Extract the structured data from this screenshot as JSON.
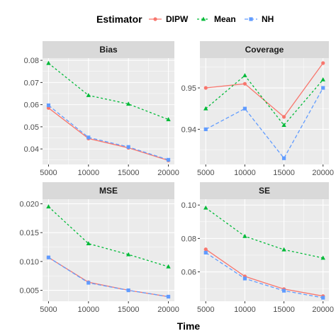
{
  "colors": {
    "DIPW": "#F8766D",
    "Mean": "#00BA38",
    "NH": "#619CFF",
    "panel_bg": "#EBEBEB",
    "strip_bg": "#D9D9D9",
    "grid": "#FFFFFF"
  },
  "legend": {
    "title": "Estimator",
    "items": [
      {
        "label": "DIPW",
        "marker": "circle",
        "dash": "solid"
      },
      {
        "label": "Mean",
        "marker": "triangle",
        "dash": "dotted"
      },
      {
        "label": "NH",
        "marker": "square",
        "dash": "dashed"
      }
    ]
  },
  "xlabel": "Time",
  "chart_data": [
    {
      "type": "line",
      "title": "Bias",
      "x": [
        5000,
        10000,
        15000,
        20000
      ],
      "xticks": [
        "5000",
        "10000",
        "15000",
        "20000"
      ],
      "ylim": [
        0.033,
        0.081
      ],
      "yticks": [
        0.04,
        0.05,
        0.06,
        0.07,
        0.08
      ],
      "ytick_labels": [
        "0.04",
        "0.05",
        "0.06",
        "0.07",
        "0.08"
      ],
      "series": [
        {
          "name": "DIPW",
          "values": [
            0.0585,
            0.0447,
            0.0405,
            0.0348
          ]
        },
        {
          "name": "Mean",
          "values": [
            0.0787,
            0.0642,
            0.0603,
            0.0533
          ]
        },
        {
          "name": "NH",
          "values": [
            0.0597,
            0.0452,
            0.0409,
            0.0351
          ]
        }
      ]
    },
    {
      "type": "line",
      "title": "Coverage",
      "x": [
        5000,
        10000,
        15000,
        20000
      ],
      "xticks": [
        "5000",
        "10000",
        "15000",
        "20000"
      ],
      "ylim": [
        0.9315,
        0.9572
      ],
      "yticks": [
        0.94,
        0.95
      ],
      "ytick_labels": [
        "0.94",
        "0.95"
      ],
      "series": [
        {
          "name": "DIPW",
          "values": [
            0.95,
            0.951,
            0.943,
            0.956
          ]
        },
        {
          "name": "Mean",
          "values": [
            0.945,
            0.953,
            0.941,
            0.952
          ]
        },
        {
          "name": "NH",
          "values": [
            0.94,
            0.945,
            0.933,
            0.95
          ]
        }
      ]
    },
    {
      "type": "line",
      "title": "MSE",
      "x": [
        5000,
        10000,
        15000,
        20000
      ],
      "xticks": [
        "5000",
        "10000",
        "15000",
        "20000"
      ],
      "ylim": [
        0.0031,
        0.0208
      ],
      "yticks": [
        0.005,
        0.01,
        0.015,
        0.02
      ],
      "ytick_labels": [
        "0.005",
        "0.010",
        "0.015",
        "0.020"
      ],
      "series": [
        {
          "name": "DIPW",
          "values": [
            0.0107,
            0.0064,
            0.005,
            0.0039
          ]
        },
        {
          "name": "Mean",
          "values": [
            0.0195,
            0.0131,
            0.0112,
            0.0091
          ]
        },
        {
          "name": "NH",
          "values": [
            0.0107,
            0.0063,
            0.005,
            0.0039
          ]
        }
      ]
    },
    {
      "type": "line",
      "title": "SE",
      "x": [
        5000,
        10000,
        15000,
        20000
      ],
      "xticks": [
        "5000",
        "10000",
        "15000",
        "20000"
      ],
      "ylim": [
        0.0424,
        0.1035
      ],
      "yticks": [
        0.06,
        0.08,
        0.1
      ],
      "ytick_labels": [
        "0.06",
        "0.08",
        "0.10"
      ],
      "series": [
        {
          "name": "DIPW",
          "values": [
            0.0735,
            0.0573,
            0.0497,
            0.0455
          ]
        },
        {
          "name": "Mean",
          "values": [
            0.0983,
            0.0813,
            0.0733,
            0.0683
          ]
        },
        {
          "name": "NH",
          "values": [
            0.0715,
            0.056,
            0.0487,
            0.0445
          ]
        }
      ]
    }
  ]
}
